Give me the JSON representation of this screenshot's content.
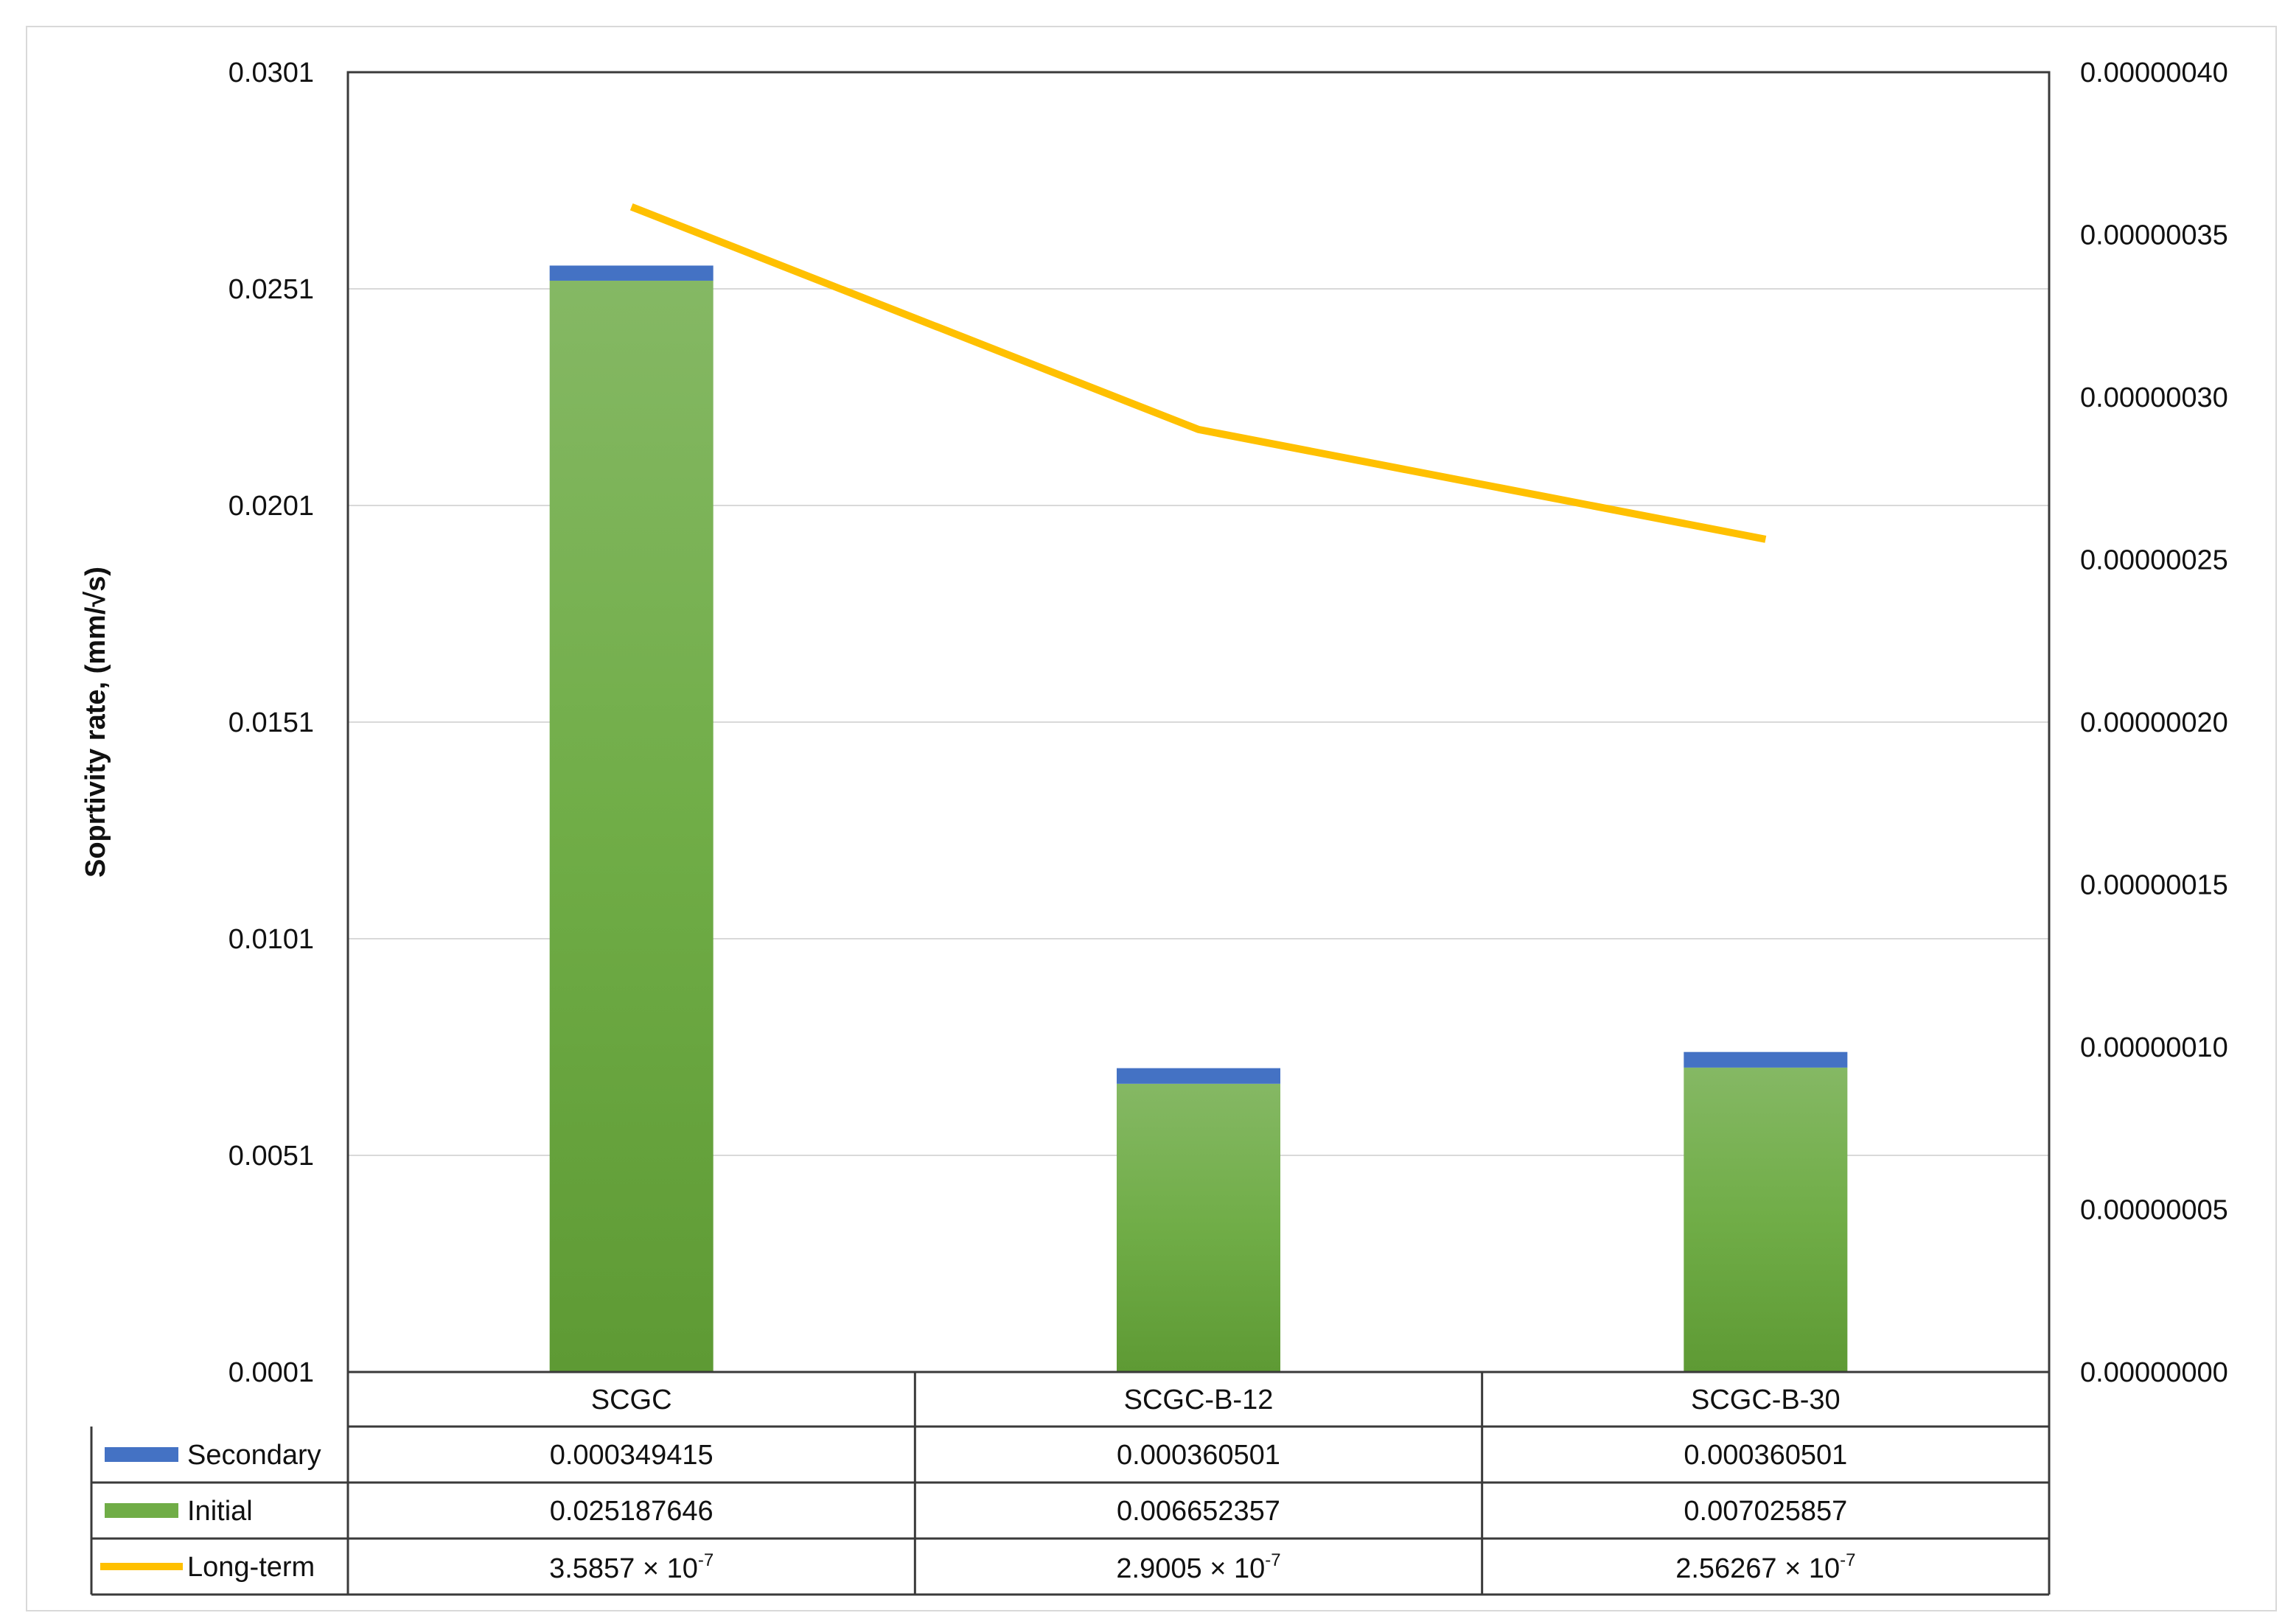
{
  "chart_data": {
    "type": "bar",
    "stacked": true,
    "categories": [
      "SCGC",
      "SCGC-B-12",
      "SCGC-B-30"
    ],
    "title": "",
    "xlabel": "",
    "ylabel": "Soprtivity rate, (mm/√s)",
    "ylim": [
      0.0001,
      0.0301
    ],
    "y_ticks": [
      "0.0001",
      "0.0051",
      "0.0101",
      "0.0151",
      "0.0201",
      "0.0251",
      "0.0301"
    ],
    "y2lim": [
      0,
      4e-07
    ],
    "y2_ticks": [
      "0.00000000",
      "0.00000005",
      "0.00000010",
      "0.00000015",
      "0.00000020",
      "0.00000025",
      "0.00000030",
      "0.00000035",
      "0.00000040"
    ],
    "grid": true,
    "legend": "data-table",
    "series": [
      {
        "name": "Secondary",
        "kind": "bar",
        "axis": "left",
        "color": "#4472C4",
        "values": [
          0.000349415,
          0.000360501,
          0.000360501
        ],
        "labels": [
          "0.000349415",
          "0.000360501",
          "0.000360501"
        ]
      },
      {
        "name": "Initial",
        "kind": "bar",
        "axis": "left",
        "color": "#70AD47",
        "values": [
          0.025187646,
          0.006652357,
          0.007025857
        ],
        "labels": [
          "0.025187646",
          "0.006652357",
          "0.007025857"
        ]
      },
      {
        "name": "Long-term",
        "kind": "line",
        "axis": "right",
        "color": "#FFC000",
        "values": [
          3.5857e-07,
          2.9005e-07,
          2.56267e-07
        ],
        "labels": [
          {
            "mantissa": "3.5857",
            "times": "×",
            "base": "10",
            "exp": "-7"
          },
          {
            "mantissa": "2.9005",
            "times": "×",
            "base": "10",
            "exp": "-7"
          },
          {
            "mantissa": "2.56267",
            "times": "×",
            "base": "10",
            "exp": "-7"
          }
        ]
      }
    ]
  }
}
